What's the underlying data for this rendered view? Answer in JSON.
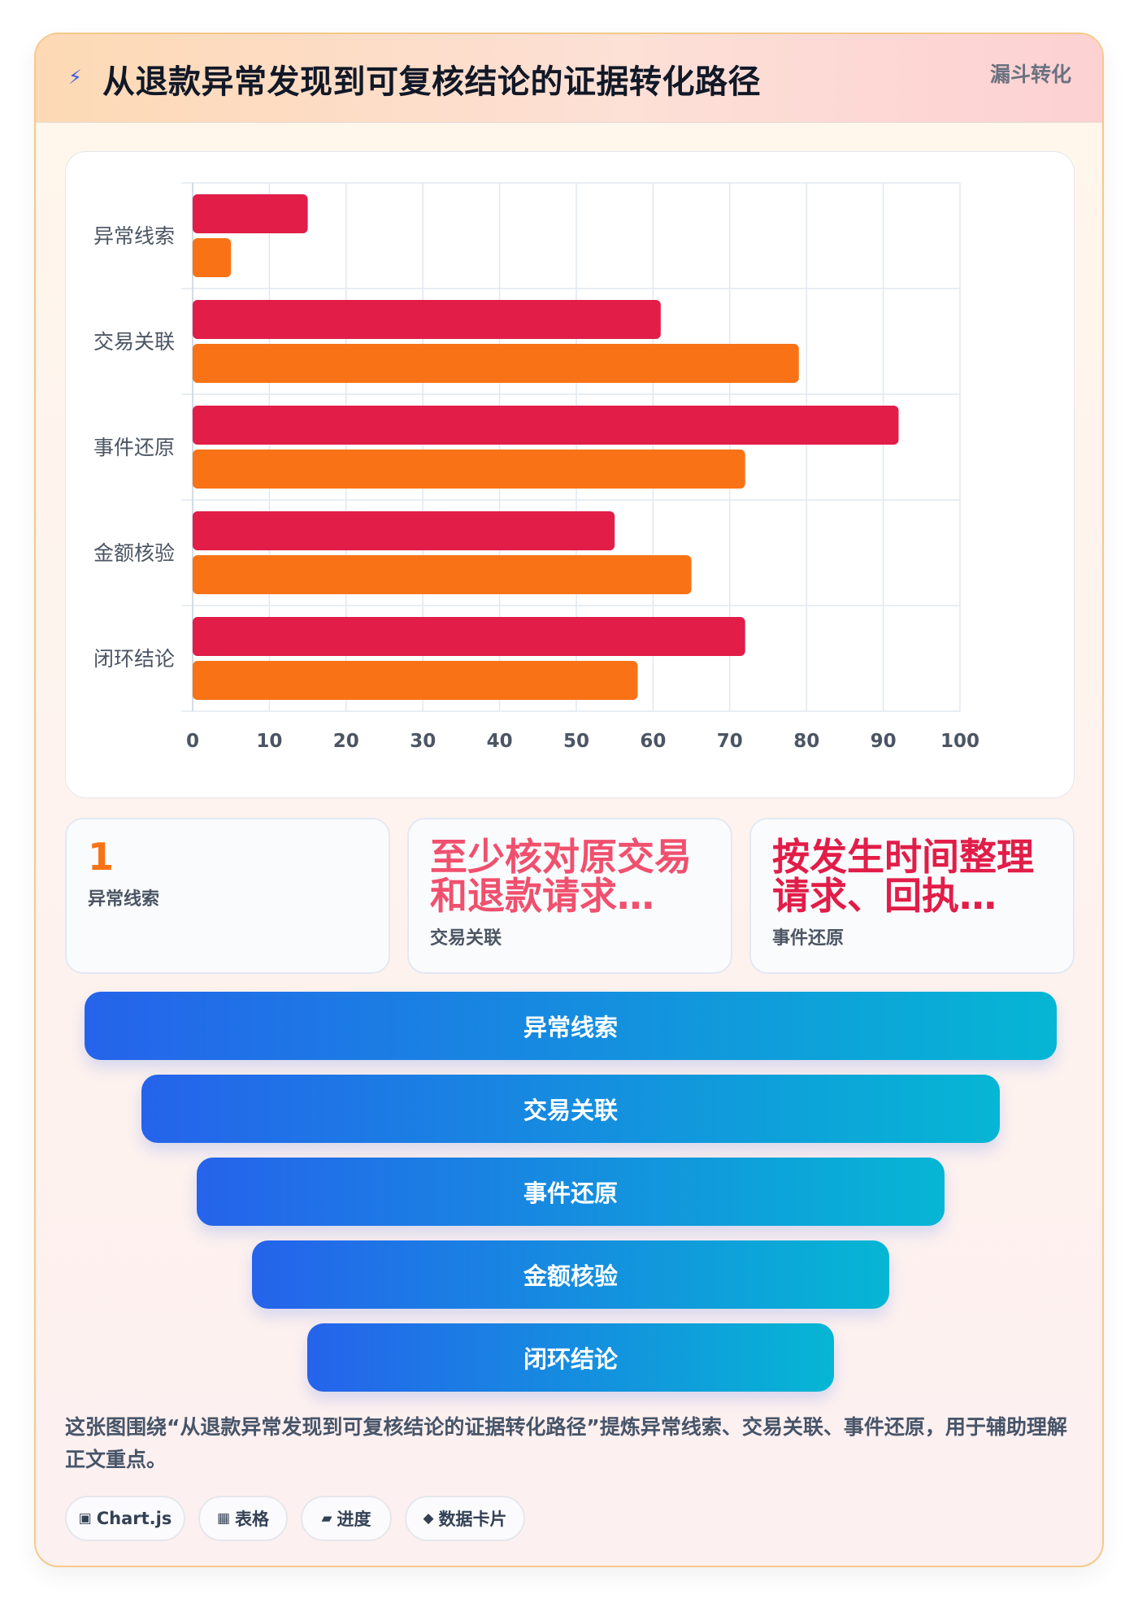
{
  "header": {
    "bolt_icon": "⚡",
    "title": "从退款异常发现到可复核结论的证据转化路径",
    "tag": "漏斗转化"
  },
  "chart_data": {
    "type": "bar",
    "orientation": "horizontal",
    "categories": [
      "异常线索",
      "交易关联",
      "事件还原",
      "金额核验",
      "闭环结论"
    ],
    "series": [
      {
        "color": "#e11d48",
        "values": [
          15,
          61,
          92,
          55,
          72
        ]
      },
      {
        "color": "#f97316",
        "values": [
          5,
          79,
          72,
          65,
          58
        ]
      }
    ],
    "xlim": [
      0,
      100
    ],
    "xticks": [
      "0",
      "10",
      "20",
      "30",
      "40",
      "50",
      "60",
      "70",
      "80",
      "90",
      "100"
    ],
    "grid": true,
    "legend": "none"
  },
  "stats": [
    {
      "value": "1",
      "label": "异常线索",
      "color": "#f97316"
    },
    {
      "value": "至少核对原交易和退款请求…",
      "label": "交易关联",
      "color": "#f0506e"
    },
    {
      "value": "按发生时间整理请求、回执…",
      "label": "事件还原",
      "color": "#e11d48"
    }
  ],
  "funnel": [
    "异常线索",
    "交易关联",
    "事件还原",
    "金额核验",
    "闭环结论"
  ],
  "description": "这张图围绕“从退款异常发现到可复核结论的证据转化路径”提炼异常线索、交易关联、事件还原，用于辅助理解正文重点。",
  "chips": [
    {
      "icon": "▣",
      "label": "Chart.js"
    },
    {
      "icon": "▦",
      "label": "表格"
    },
    {
      "icon": "▰",
      "label": "进度"
    },
    {
      "icon": "◆",
      "label": "数据卡片"
    }
  ]
}
